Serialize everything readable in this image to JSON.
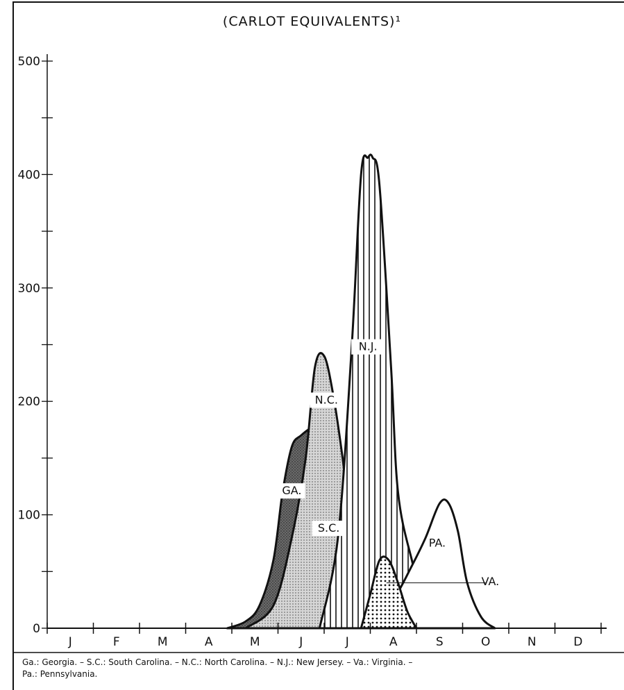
{
  "chart_data": {
    "type": "area",
    "title": "(CARLOT EQUIVALENTS)¹",
    "xlabel": "",
    "ylabel": "",
    "x_categories": [
      "J",
      "F",
      "M",
      "A",
      "M",
      "J",
      "J",
      "A",
      "S",
      "O",
      "N",
      "D"
    ],
    "y_ticks": [
      "0",
      "100",
      "200",
      "300",
      "400",
      "500"
    ],
    "ylim": [
      0,
      500
    ],
    "series": [
      {
        "name": "GA.",
        "fill": "dark-stipple",
        "x": [
          3.9,
          4.3,
          4.6,
          4.9,
          5.1,
          5.3,
          5.5,
          5.8,
          6.0,
          6.2,
          6.5,
          6.7,
          7.0,
          7.2,
          7.5
        ],
        "y": [
          0,
          6,
          20,
          60,
          120,
          160,
          170,
          178,
          175,
          150,
          100,
          50,
          20,
          5,
          0
        ]
      },
      {
        "name": "S.C.",
        "fill": "dense-stipple",
        "x": [
          4.3,
          4.9,
          5.3,
          5.6,
          5.9,
          6.1,
          6.3,
          6.5,
          6.8,
          7.1,
          7.5
        ],
        "y": [
          0,
          10,
          40,
          90,
          150,
          170,
          165,
          120,
          50,
          10,
          0
        ]
      },
      {
        "name": "N.C.",
        "fill": "light-stipple",
        "x": [
          4.3,
          4.9,
          5.3,
          5.6,
          5.8,
          6.0,
          6.2,
          6.4,
          6.6,
          6.8,
          7.1,
          7.5
        ],
        "y": [
          0,
          20,
          80,
          150,
          230,
          240,
          205,
          150,
          85,
          30,
          6,
          0
        ]
      },
      {
        "name": "N.J.",
        "fill": "vertical-lines",
        "x": [
          5.9,
          6.3,
          6.6,
          6.8,
          6.95,
          7.05,
          7.2,
          7.45,
          7.6,
          7.9,
          8.2,
          8.6,
          9.0
        ],
        "y": [
          0,
          80,
          250,
          400,
          415,
          415,
          390,
          230,
          120,
          60,
          20,
          5,
          0
        ]
      },
      {
        "name": "PA.",
        "fill": "white",
        "x": [
          7.0,
          7.5,
          7.9,
          8.2,
          8.5,
          8.7,
          8.9,
          9.1,
          9.4,
          9.7
        ],
        "y": [
          0,
          25,
          55,
          80,
          110,
          110,
          85,
          40,
          10,
          0
        ]
      },
      {
        "name": "VA.",
        "fill": "dots",
        "x": [
          6.8,
          7.0,
          7.2,
          7.4,
          7.6,
          7.8,
          8.0
        ],
        "y": [
          0,
          30,
          60,
          60,
          40,
          15,
          0
        ]
      }
    ]
  },
  "footnote_line1": "Ga.: Georgia. – S.C.: South Carolina. – N.C.: North Carolina. – N.J.: New Jersey. – Va.: Virginia. –",
  "footnote_line2": "Pa.: Pennsylvania."
}
